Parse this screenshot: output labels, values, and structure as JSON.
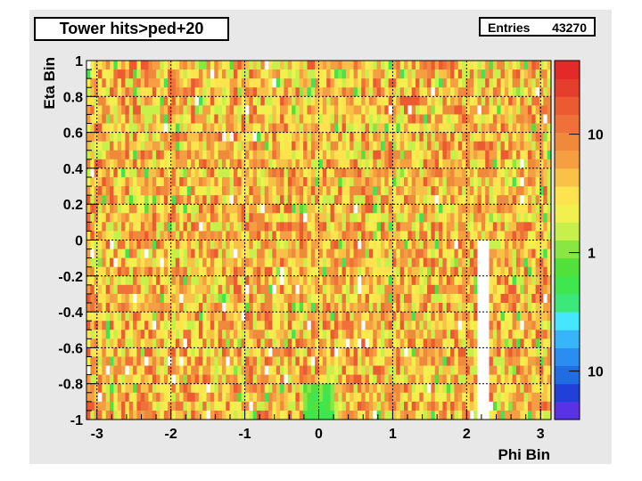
{
  "title": "Tower hits>ped+20",
  "stats": {
    "label": "Entries",
    "value": "43270"
  },
  "chart_data": {
    "type": "heatmap",
    "title": "Tower hits>ped+20",
    "xlabel": "Phi Bin",
    "ylabel": "Eta Bin",
    "xlim": [
      -3.14159,
      3.14159
    ],
    "ylim": [
      -1,
      1
    ],
    "x_ticks": [
      "-3",
      "-2",
      "-1",
      "0",
      "1",
      "2",
      "3"
    ],
    "y_ticks": [
      "1",
      "0.8",
      "0.6",
      "0.4",
      "0.2",
      "0",
      "-0.2",
      "-0.4",
      "-0.6",
      "-0.8",
      "-1"
    ],
    "nbins_x": 120,
    "nbins_y": 40,
    "colorbar_labels": [
      "10",
      "1",
      "10"
    ],
    "colorscale": [
      "#5a32e6",
      "#2140d8",
      "#1f6ce3",
      "#2b8df0",
      "#38b4f8",
      "#46e6ff",
      "#3ce87a",
      "#3ee650",
      "#52e03a",
      "#8ae640",
      "#c8f04a",
      "#f2f04e",
      "#fde44e",
      "#f8c248",
      "#f59e42",
      "#ef8a3c",
      "#ef7038",
      "#ec5a32",
      "#e63e2c",
      "#e42a28"
    ],
    "features": {
      "empty_strip_phi": [
        2.15,
        2.33
      ],
      "empty_strip_eta": [
        -1,
        0.02
      ],
      "low_patch_phi": [
        -0.2,
        0.2
      ],
      "low_patch_eta": [
        -1,
        -0.8
      ],
      "random_seed": 43270
    },
    "grid": true,
    "colorbar": true,
    "logz": true
  }
}
